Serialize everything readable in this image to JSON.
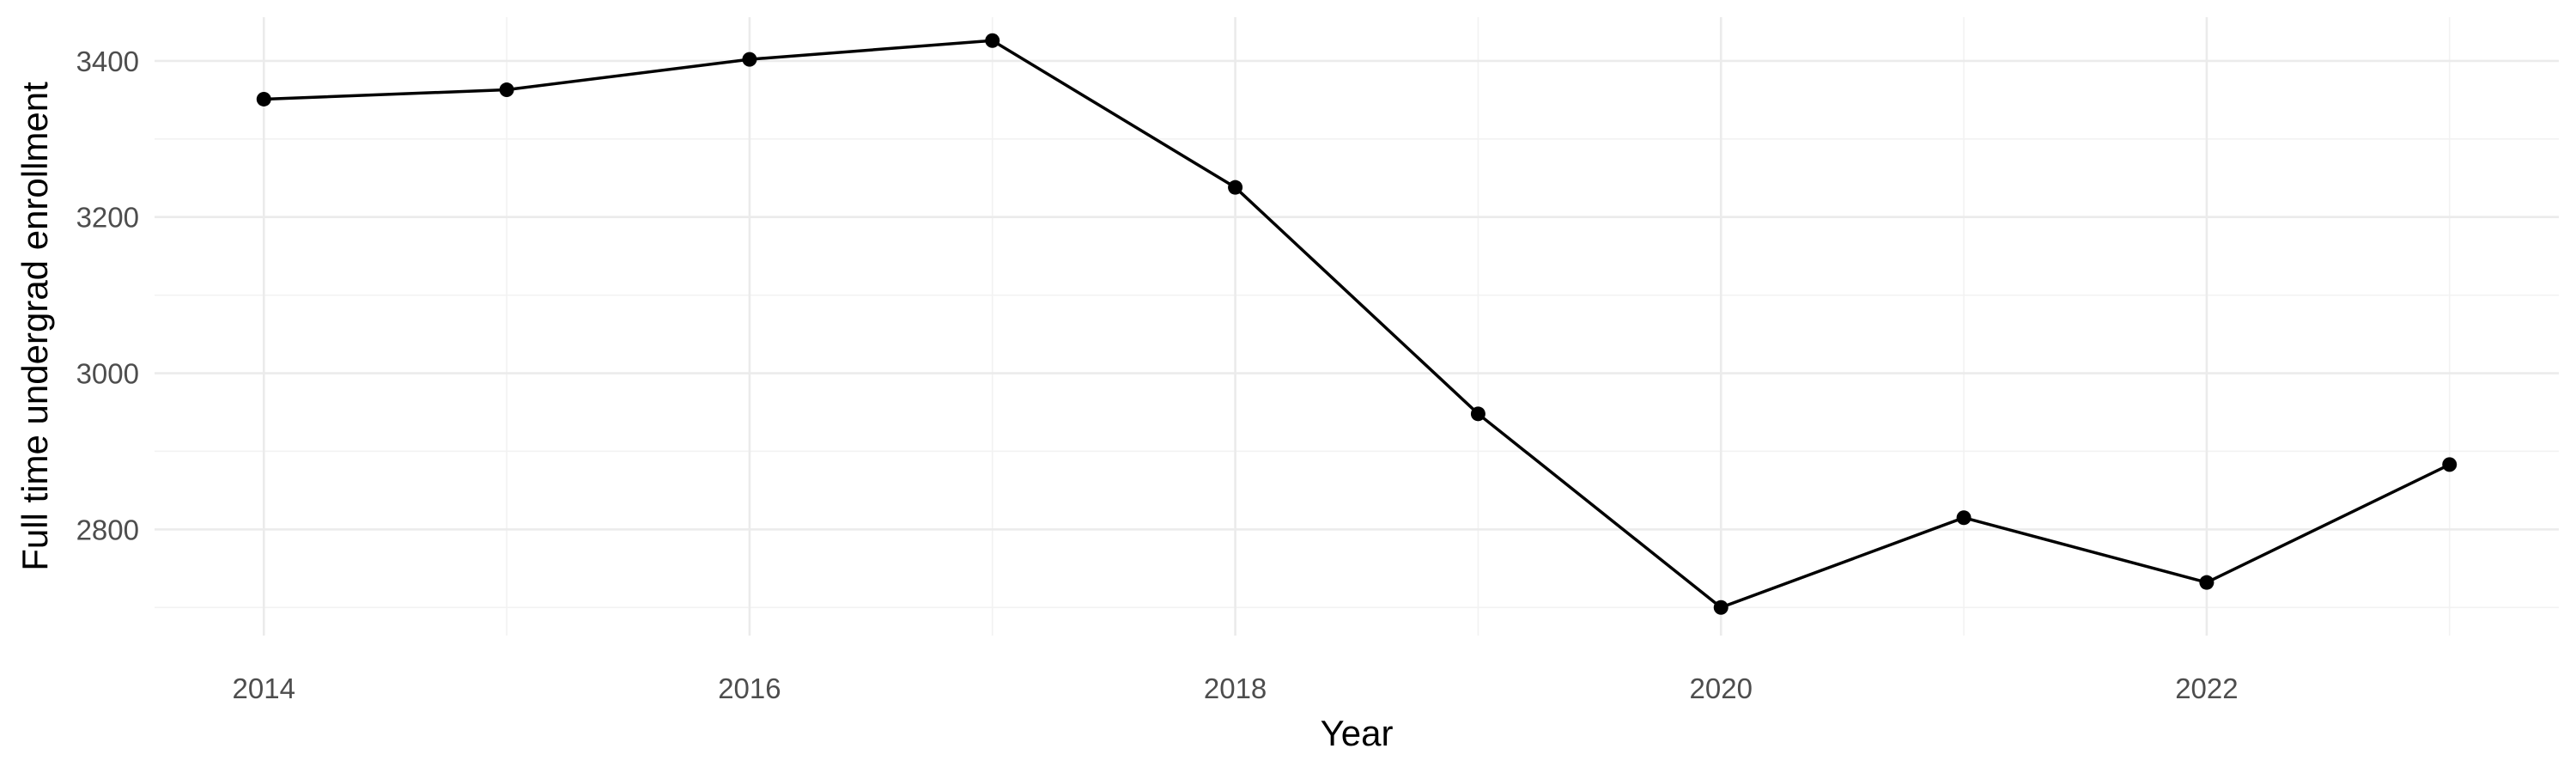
{
  "chart_data": {
    "type": "line",
    "title": "",
    "xlabel": "Year",
    "ylabel": "Full time undergrad enrollment",
    "xlim": [
      2013.55,
      2023.45
    ],
    "ylim": [
      2664,
      3456
    ],
    "x_ticks": [
      2014,
      2016,
      2018,
      2020,
      2022
    ],
    "y_ticks": [
      2800,
      3000,
      3200,
      3400
    ],
    "x_tick_labels": [
      "2014",
      "2016",
      "2018",
      "2020",
      "2022"
    ],
    "y_tick_labels": [
      "2800",
      "3000",
      "3200",
      "3400"
    ],
    "grid": true,
    "legend": "none",
    "color": "#000000",
    "series": [
      {
        "x": [
          2014,
          2015,
          2016,
          2017,
          2018,
          2019,
          2020,
          2021,
          2022,
          2023
        ],
        "values": [
          3351,
          3363,
          3402,
          3426,
          3238,
          2948,
          2700,
          2815,
          2732,
          2883
        ]
      }
    ]
  }
}
